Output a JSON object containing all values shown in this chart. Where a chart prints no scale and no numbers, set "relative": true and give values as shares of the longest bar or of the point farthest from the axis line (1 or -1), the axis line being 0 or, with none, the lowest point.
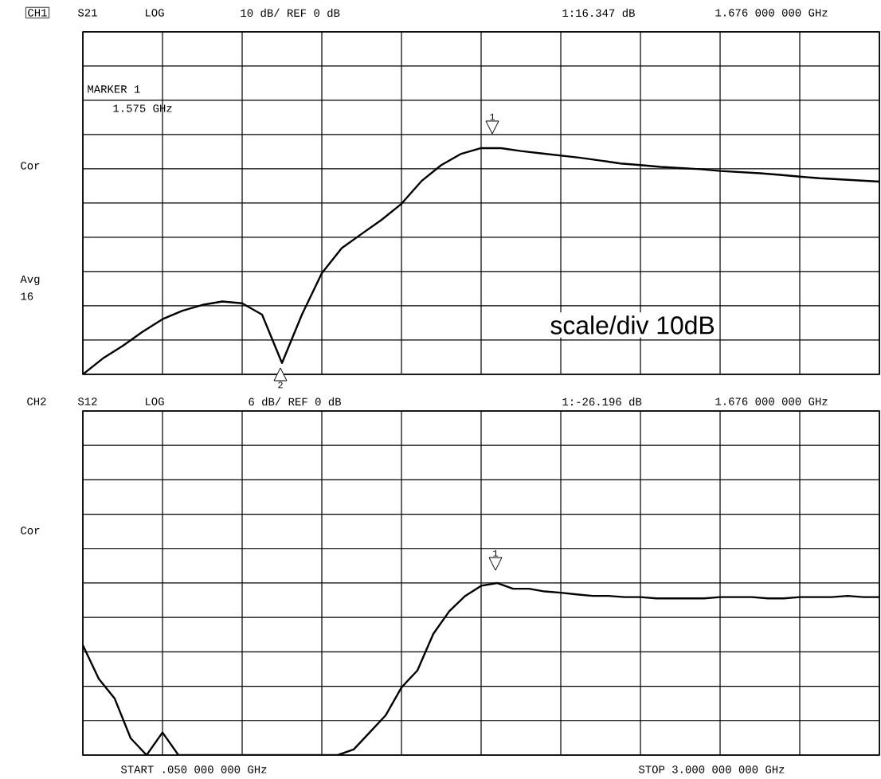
{
  "chart_data": [
    {
      "type": "line",
      "relative": true,
      "grid": true,
      "marker": "none",
      "line_style": "solid",
      "color": "#000000",
      "categories": [
        null,
        null,
        null,
        null,
        null,
        null,
        null,
        null,
        null,
        null,
        null,
        null,
        null,
        null,
        null,
        null,
        null,
        null,
        null,
        null,
        null,
        null,
        null,
        null,
        null,
        null,
        null,
        null,
        null,
        null,
        null,
        null,
        null,
        null,
        null,
        null,
        null,
        null,
        null,
        null,
        null
      ],
      "values": [
        0,
        0.07,
        0.126,
        0.188,
        0.244,
        0.281,
        0.307,
        0.322,
        0.314,
        0.264,
        0.05,
        0.264,
        0.447,
        0.558,
        0.621,
        0.683,
        0.754,
        0.854,
        0.925,
        0.975,
        1.0,
        1.0,
        0.987,
        0.977,
        0.967,
        0.957,
        0.945,
        0.932,
        0.925,
        0.917,
        0.912,
        0.907,
        0.899,
        0.894,
        0.889,
        0.882,
        0.874,
        0.867,
        0.862,
        0.857,
        0.852
      ],
      "annotations": [
        "CH1",
        "S21",
        "LOG",
        "10 dB/ REF 0 dB",
        "1:16.347 dB",
        "1.676 000 000 GHz",
        "MARKER 1",
        "1.575 GHz",
        "Cor",
        "Avg",
        "16",
        "scale/div 10dB",
        "1",
        "2"
      ]
    },
    {
      "type": "line",
      "relative": true,
      "grid": true,
      "marker": "none",
      "line_style": "solid",
      "color": "#000000",
      "categories": [
        null,
        null,
        null,
        null,
        null,
        null,
        null,
        null,
        null,
        null,
        null,
        null,
        null,
        null,
        null,
        null,
        null,
        null,
        null,
        null,
        null,
        null,
        null,
        null,
        null,
        null,
        null,
        null,
        null,
        null,
        null,
        null,
        null,
        null,
        null,
        null,
        null,
        null,
        null,
        null,
        null,
        null,
        null,
        null,
        null,
        null,
        null,
        null,
        null,
        null,
        null
      ],
      "values": [
        0.639,
        0.443,
        0.328,
        0.098,
        0,
        0.131,
        0,
        0,
        0,
        0,
        0,
        0,
        0,
        0,
        0,
        0,
        0,
        0.033,
        0.131,
        0.23,
        0.393,
        0.492,
        0.705,
        0.836,
        0.925,
        0.984,
        1.0,
        0.967,
        0.967,
        0.951,
        0.944,
        0.934,
        0.925,
        0.925,
        0.918,
        0.918,
        0.911,
        0.911,
        0.911,
        0.911,
        0.918,
        0.918,
        0.918,
        0.911,
        0.911,
        0.918,
        0.918,
        0.918,
        0.925,
        0.918,
        0.918
      ],
      "annotations": [
        "CH2",
        "S12",
        "LOG",
        "6 dB/ REF 0 dB",
        "1:-26.196 dB",
        "1.676 000 000 GHz",
        "Cor",
        "START .050 000 000 GHz",
        "STOP 3.000 000 000 GHz",
        "1"
      ]
    }
  ]
}
